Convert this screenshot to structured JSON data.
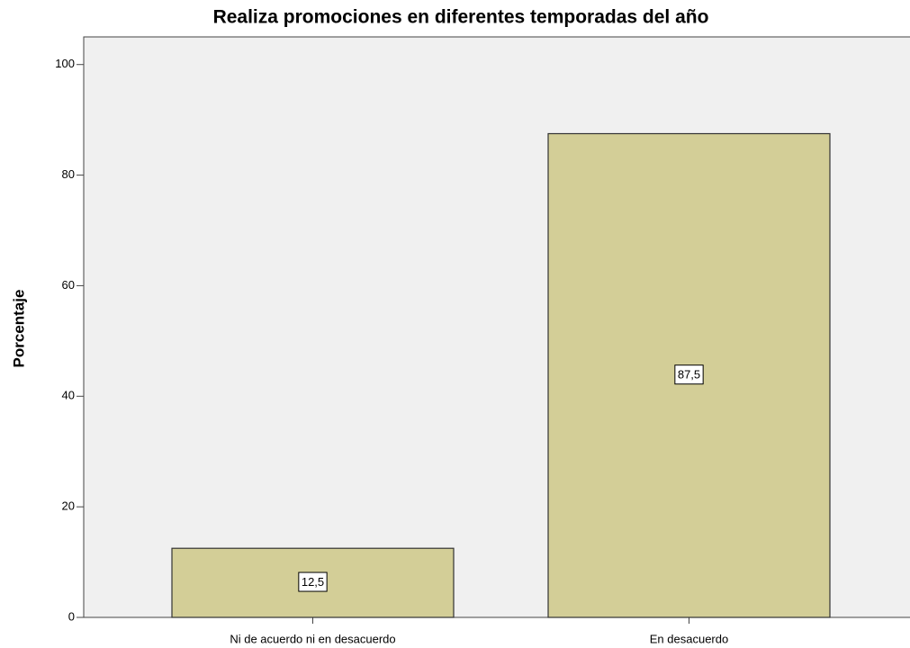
{
  "chart_data": {
    "type": "bar",
    "title": "Realiza promociones en diferentes temporadas del año",
    "y_label": "Porcentaje",
    "categories": [
      "Ni de acuerdo ni en desacuerdo",
      "En desacuerdo"
    ],
    "values": [
      12.5,
      87.5
    ],
    "value_labels": [
      "12,5",
      "87,5"
    ],
    "color": "#d3ce97",
    "ylim": [
      0,
      105
    ],
    "yticks": [
      0,
      20,
      40,
      60,
      80,
      100
    ]
  }
}
